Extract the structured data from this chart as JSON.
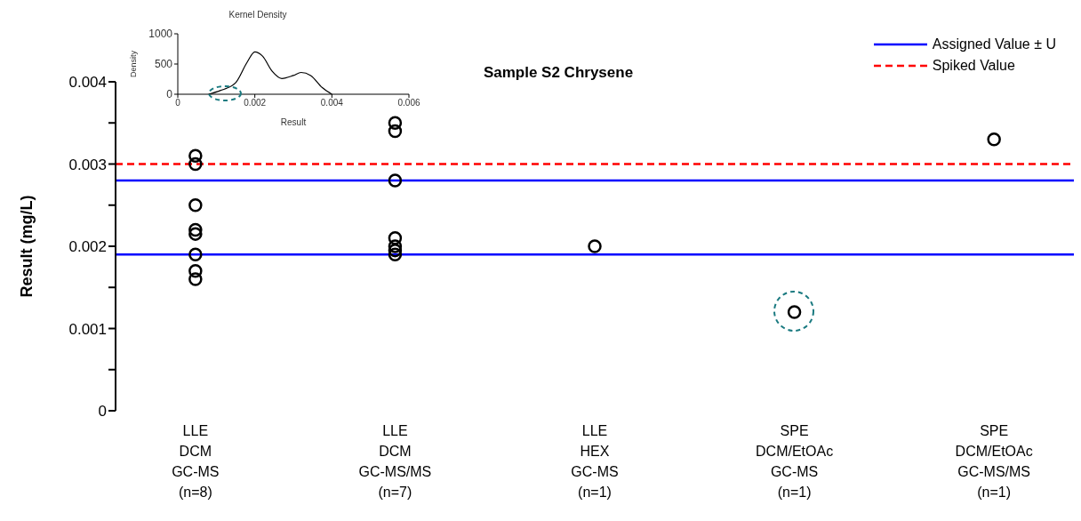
{
  "chart_data": [
    {
      "type": "scatter",
      "title": "Sample S2 Chrysene",
      "ylabel": "Result (mg/L)",
      "categories": [
        "LLE\nDCM\nGC-MS\n(n=8)",
        "LLE\nDCM\nGC-MS/MS\n(n=7)",
        "LLE\nHEX\nGC-MS\n(n=1)",
        "SPE\nDCM/EtOAc\nGC-MS\n(n=1)",
        "SPE\nDCM/EtOAc\nGC-MS/MS\n(n=1)"
      ],
      "series": [
        {
          "color": "#000000",
          "x": [
            "LLE\nDCM\nGC-MS\n(n=8)",
            "LLE\nDCM\nGC-MS\n(n=8)",
            "LLE\nDCM\nGC-MS\n(n=8)",
            "LLE\nDCM\nGC-MS\n(n=8)",
            "LLE\nDCM\nGC-MS\n(n=8)",
            "LLE\nDCM\nGC-MS\n(n=8)",
            "LLE\nDCM\nGC-MS\n(n=8)",
            "LLE\nDCM\nGC-MS\n(n=8)",
            "LLE\nDCM\nGC-MS/MS\n(n=7)",
            "LLE\nDCM\nGC-MS/MS\n(n=7)",
            "LLE\nDCM\nGC-MS/MS\n(n=7)",
            "LLE\nDCM\nGC-MS/MS\n(n=7)",
            "LLE\nDCM\nGC-MS/MS\n(n=7)",
            "LLE\nDCM\nGC-MS/MS\n(n=7)",
            "LLE\nDCM\nGC-MS/MS\n(n=7)",
            "LLE\nHEX\nGC-MS\n(n=1)",
            "SPE\nDCM/EtOAc\nGC-MS\n(n=1)",
            "SPE\nDCM/EtOAc\nGC-MS/MS\n(n=1)"
          ],
          "values": [
            0.0031,
            0.003,
            0.0025,
            0.0022,
            0.00215,
            0.0019,
            0.0017,
            0.0016,
            0.0035,
            0.0034,
            0.0028,
            0.0021,
            0.002,
            0.00195,
            0.0019,
            0.002,
            0.0012,
            0.0033
          ]
        }
      ],
      "ylim": [
        0,
        0.004
      ],
      "yticks": [
        0,
        {
          "value": 0.0005,
          "label": null
        },
        0.001,
        {
          "value": 0.0015,
          "label": null
        },
        0.002,
        {
          "value": 0.0025,
          "label": null
        },
        0.003,
        {
          "value": 0.0035,
          "label": null
        },
        0.004
      ],
      "ref_lines": [
        {
          "axis": "y",
          "value": 0.0028,
          "label": "Assigned Value ± U",
          "color": "#0000ff",
          "line_style": "solid"
        },
        {
          "axis": "y",
          "value": 0.0019,
          "color": "#0000ff",
          "line_style": "solid"
        },
        {
          "axis": "y",
          "value": 0.003,
          "label": "Spiked Value",
          "color": "#ff0000",
          "line_style": "dashed"
        }
      ],
      "marker": "circle",
      "legend": "top right"
    },
    {
      "type": "line",
      "title": "Kernel Density",
      "xlabel": "Result",
      "ylabel": "Density",
      "x": [
        0.0008,
        0.0011,
        0.0015,
        0.0018,
        0.002,
        0.0022,
        0.00245,
        0.0027,
        0.003,
        0.0032,
        0.00345,
        0.00375,
        0.004
      ],
      "values": [
        0,
        60,
        190,
        530,
        700,
        630,
        380,
        260,
        310,
        360,
        310,
        110,
        0
      ],
      "color": "#000000",
      "marker": "none",
      "xlim": [
        0,
        0.006
      ],
      "xticks": [
        0,
        0.002,
        0.004,
        0.006
      ],
      "ylim": [
        0,
        1000
      ],
      "yticks": [
        0,
        500,
        1000
      ]
    }
  ]
}
